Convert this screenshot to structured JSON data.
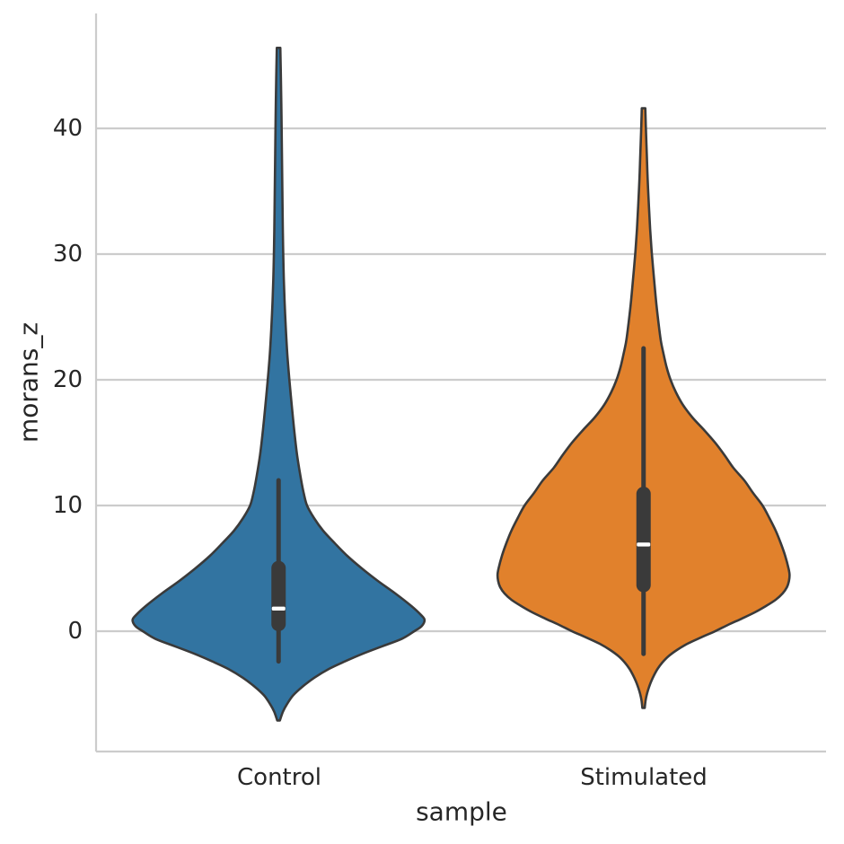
{
  "figure": {
    "background": "#ffffff",
    "text_color": "#262626",
    "grid_color": "#cccccc",
    "spine_color": "#cccccc",
    "edge_color": "#3a3a3a",
    "median_color": "#ffffff"
  },
  "chart_data": {
    "type": "violin",
    "title": "",
    "xlabel": "sample",
    "ylabel": "morans_z",
    "categories": [
      "Control",
      "Stimulated"
    ],
    "yticks": [
      0,
      10,
      20,
      30,
      40
    ],
    "ylim": [
      -9.57,
      49.14
    ],
    "grid": true,
    "legend": "none",
    "series": [
      {
        "name": "Control",
        "color": "#3274a1",
        "stats": {
          "median": 1.8,
          "q1": 0.0,
          "q3": 5.6,
          "whisker_low": -2.4,
          "whisker_high": 12.0,
          "kde_min": -7.1,
          "kde_max": 46.4
        },
        "kde_profile": [
          [
            46.4,
            0.012
          ],
          [
            44,
            0.016
          ],
          [
            41,
            0.02
          ],
          [
            38,
            0.023
          ],
          [
            35,
            0.026
          ],
          [
            32,
            0.029
          ],
          [
            30,
            0.032
          ],
          [
            28,
            0.036
          ],
          [
            26,
            0.042
          ],
          [
            24,
            0.05
          ],
          [
            22,
            0.06
          ],
          [
            20,
            0.074
          ],
          [
            18,
            0.09
          ],
          [
            16,
            0.107
          ],
          [
            14,
            0.127
          ],
          [
            12,
            0.155
          ],
          [
            11,
            0.172
          ],
          [
            10,
            0.195
          ],
          [
            9,
            0.243
          ],
          [
            8,
            0.305
          ],
          [
            7,
            0.385
          ],
          [
            6,
            0.47
          ],
          [
            5,
            0.57
          ],
          [
            4,
            0.68
          ],
          [
            3,
            0.8
          ],
          [
            2,
            0.91
          ],
          [
            1.3,
            0.975
          ],
          [
            0.9,
            1.0
          ],
          [
            0.4,
            0.98
          ],
          [
            0,
            0.93
          ],
          [
            -0.6,
            0.845
          ],
          [
            -1.2,
            0.71
          ],
          [
            -1.8,
            0.575
          ],
          [
            -2.4,
            0.455
          ],
          [
            -3,
            0.345
          ],
          [
            -3.7,
            0.245
          ],
          [
            -4.4,
            0.165
          ],
          [
            -5.1,
            0.1
          ],
          [
            -5.8,
            0.058
          ],
          [
            -6.4,
            0.03
          ],
          [
            -7.1,
            0.009
          ]
        ]
      },
      {
        "name": "Stimulated",
        "color": "#e1812c",
        "stats": {
          "median": 6.9,
          "q1": 3.1,
          "q3": 11.5,
          "whisker_low": -1.8,
          "whisker_high": 22.5,
          "kde_min": -6.1,
          "kde_max": 41.6
        },
        "kde_profile": [
          [
            41.6,
            0.012
          ],
          [
            40,
            0.016
          ],
          [
            38,
            0.022
          ],
          [
            36,
            0.028
          ],
          [
            34,
            0.036
          ],
          [
            32,
            0.045
          ],
          [
            30,
            0.057
          ],
          [
            28,
            0.072
          ],
          [
            26,
            0.088
          ],
          [
            24,
            0.108
          ],
          [
            23,
            0.12
          ],
          [
            22,
            0.138
          ],
          [
            21,
            0.158
          ],
          [
            20,
            0.185
          ],
          [
            19,
            0.222
          ],
          [
            18,
            0.27
          ],
          [
            17,
            0.335
          ],
          [
            16,
            0.415
          ],
          [
            15,
            0.49
          ],
          [
            14,
            0.555
          ],
          [
            13,
            0.615
          ],
          [
            12,
            0.69
          ],
          [
            11,
            0.75
          ],
          [
            10,
            0.815
          ],
          [
            9,
            0.862
          ],
          [
            8,
            0.905
          ],
          [
            7,
            0.94
          ],
          [
            6,
            0.97
          ],
          [
            5,
            0.993
          ],
          [
            4.5,
            1.0
          ],
          [
            4,
            0.996
          ],
          [
            3.5,
            0.982
          ],
          [
            3,
            0.952
          ],
          [
            2.5,
            0.905
          ],
          [
            2,
            0.838
          ],
          [
            1.5,
            0.762
          ],
          [
            1,
            0.672
          ],
          [
            0.5,
            0.578
          ],
          [
            0,
            0.49
          ],
          [
            -0.5,
            0.392
          ],
          [
            -1,
            0.3
          ],
          [
            -1.5,
            0.228
          ],
          [
            -2,
            0.17
          ],
          [
            -2.5,
            0.128
          ],
          [
            -3,
            0.096
          ],
          [
            -3.5,
            0.072
          ],
          [
            -4,
            0.052
          ],
          [
            -4.5,
            0.036
          ],
          [
            -5,
            0.023
          ],
          [
            -5.5,
            0.014
          ],
          [
            -6.1,
            0.008
          ]
        ]
      }
    ]
  }
}
